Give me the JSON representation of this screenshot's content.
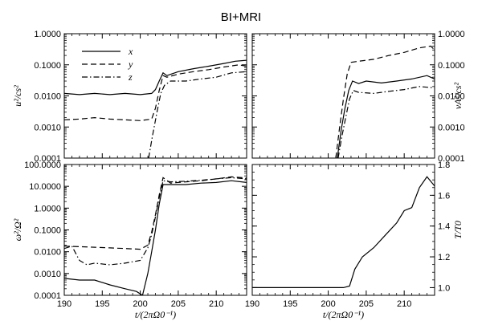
{
  "figure_title": "BI+MRI",
  "chart_data": [
    {
      "type": "line",
      "panel": "top-left",
      "ylabel": "u²/cs²",
      "yscale": "log",
      "ylim": [
        0.0001,
        1.0
      ],
      "xlim": [
        190,
        214
      ],
      "yticks": [
        "0.0001",
        "0.0010",
        "0.0100",
        "0.1000",
        "1.0000"
      ],
      "legend": {
        "placement": "top-left",
        "entries": [
          "x",
          "y",
          "z"
        ]
      },
      "series": [
        {
          "name": "x",
          "style": "solid",
          "points": [
            [
              190,
              0.012
            ],
            [
              192,
              0.011
            ],
            [
              194,
              0.012
            ],
            [
              196,
              0.011
            ],
            [
              198,
              0.012
            ],
            [
              200,
              0.011
            ],
            [
              201.5,
              0.012
            ],
            [
              202,
              0.016
            ],
            [
              202.5,
              0.03
            ],
            [
              203,
              0.055
            ],
            [
              203.5,
              0.045
            ],
            [
              205,
              0.06
            ],
            [
              207,
              0.075
            ],
            [
              209,
              0.09
            ],
            [
              211,
              0.11
            ],
            [
              212.5,
              0.13
            ],
            [
              214,
              0.14
            ]
          ]
        },
        {
          "name": "y",
          "style": "dashed",
          "points": [
            [
              190,
              0.0017
            ],
            [
              192,
              0.0018
            ],
            [
              194,
              0.002
            ],
            [
              196,
              0.0018
            ],
            [
              198,
              0.0017
            ],
            [
              200,
              0.0016
            ],
            [
              201.5,
              0.0018
            ],
            [
              202,
              0.004
            ],
            [
              202.5,
              0.015
            ],
            [
              203,
              0.045
            ],
            [
              203.5,
              0.04
            ],
            [
              205,
              0.05
            ],
            [
              207,
              0.06
            ],
            [
              209,
              0.07
            ],
            [
              211,
              0.085
            ],
            [
              213,
              0.1
            ],
            [
              214,
              0.09
            ]
          ]
        },
        {
          "name": "z",
          "style": "dashdot",
          "points": [
            [
              201.1,
              0.0001
            ],
            [
              201.6,
              0.0005
            ],
            [
              202.2,
              0.003
            ],
            [
              202.7,
              0.012
            ],
            [
              203.2,
              0.022
            ],
            [
              204,
              0.03
            ],
            [
              206,
              0.03
            ],
            [
              208,
              0.035
            ],
            [
              210,
              0.04
            ],
            [
              212,
              0.055
            ],
            [
              214,
              0.06
            ]
          ]
        }
      ]
    },
    {
      "type": "line",
      "panel": "top-right",
      "ylabel": "vA²/cs²",
      "yscale": "log",
      "ylim": [
        0.0001,
        1.0
      ],
      "xlim": [
        190,
        214
      ],
      "yticks": [
        "0.0001",
        "0.0010",
        "0.0100",
        "0.1000",
        "1.0000"
      ],
      "series": [
        {
          "name": "x",
          "style": "solid",
          "points": [
            [
              201.2,
              0.0001
            ],
            [
              201.7,
              0.0008
            ],
            [
              202.2,
              0.004
            ],
            [
              202.7,
              0.015
            ],
            [
              203.2,
              0.03
            ],
            [
              204,
              0.025
            ],
            [
              205,
              0.03
            ],
            [
              207,
              0.026
            ],
            [
              209,
              0.03
            ],
            [
              211,
              0.035
            ],
            [
              213,
              0.045
            ],
            [
              214,
              0.035
            ]
          ]
        },
        {
          "name": "y",
          "style": "dashed",
          "points": [
            [
              201.0,
              0.0001
            ],
            [
              201.5,
              0.001
            ],
            [
              202,
              0.008
            ],
            [
              202.5,
              0.05
            ],
            [
              203,
              0.12
            ],
            [
              204,
              0.13
            ],
            [
              206,
              0.15
            ],
            [
              208,
              0.2
            ],
            [
              210,
              0.25
            ],
            [
              212,
              0.35
            ],
            [
              213.5,
              0.4
            ],
            [
              214,
              0.3
            ]
          ]
        },
        {
          "name": "z",
          "style": "dashdot",
          "points": [
            [
              201.3,
              0.0001
            ],
            [
              201.8,
              0.0005
            ],
            [
              202.3,
              0.002
            ],
            [
              202.8,
              0.008
            ],
            [
              203.3,
              0.015
            ],
            [
              204,
              0.013
            ],
            [
              206,
              0.012
            ],
            [
              208,
              0.014
            ],
            [
              210,
              0.016
            ],
            [
              212,
              0.02
            ],
            [
              214,
              0.018
            ]
          ]
        }
      ]
    },
    {
      "type": "line",
      "panel": "bottom-left",
      "ylabel": "ω²/Ω²",
      "xlabel": "t/(2πΩ0⁻¹)",
      "yscale": "log",
      "ylim": [
        0.0001,
        100.0
      ],
      "xlim": [
        190,
        214
      ],
      "xticks": [
        "190",
        "195",
        "200",
        "205",
        "210"
      ],
      "yticks": [
        "0.0001",
        "0.0010",
        "0.0100",
        "0.1000",
        "1.0000",
        "10.0000",
        "100.0000"
      ],
      "series": [
        {
          "name": "x",
          "style": "solid",
          "points": [
            [
              190,
              0.0006
            ],
            [
              192,
              0.0005
            ],
            [
              194,
              0.0005
            ],
            [
              196,
              0.0003
            ],
            [
              198,
              0.0002
            ],
            [
              199.5,
              0.00015
            ],
            [
              200.3,
              0.0001
            ],
            [
              201,
              0.001
            ],
            [
              201.5,
              0.01
            ],
            [
              202,
              0.1
            ],
            [
              202.5,
              1.5
            ],
            [
              203,
              12
            ],
            [
              204,
              12
            ],
            [
              206,
              12
            ],
            [
              208,
              14
            ],
            [
              210,
              15
            ],
            [
              212,
              18
            ],
            [
              214,
              15
            ]
          ]
        },
        {
          "name": "y",
          "style": "dashed",
          "points": [
            [
              190,
              0.018
            ],
            [
              192,
              0.017
            ],
            [
              194,
              0.016
            ],
            [
              196,
              0.015
            ],
            [
              198,
              0.014
            ],
            [
              200,
              0.013
            ],
            [
              201,
              0.02
            ],
            [
              201.5,
              0.08
            ],
            [
              202,
              0.5
            ],
            [
              202.5,
              4
            ],
            [
              203,
              25
            ],
            [
              204,
              14
            ],
            [
              206,
              16
            ],
            [
              208,
              18
            ],
            [
              210,
              22
            ],
            [
              212,
              27
            ],
            [
              214,
              24
            ]
          ]
        },
        {
          "name": "z",
          "style": "dashdot",
          "points": [
            [
              190,
              0.014
            ],
            [
              191,
              0.018
            ],
            [
              192,
              0.004
            ],
            [
              193,
              0.0025
            ],
            [
              194,
              0.003
            ],
            [
              196,
              0.0025
            ],
            [
              198,
              0.003
            ],
            [
              200,
              0.004
            ],
            [
              201,
              0.015
            ],
            [
              201.5,
              0.06
            ],
            [
              202,
              0.4
            ],
            [
              202.5,
              3
            ],
            [
              203,
              18
            ],
            [
              204,
              16
            ],
            [
              206,
              17
            ],
            [
              208,
              19
            ],
            [
              210,
              22
            ],
            [
              212,
              25
            ],
            [
              214,
              22
            ]
          ]
        }
      ]
    },
    {
      "type": "line",
      "panel": "bottom-right",
      "ylabel": "T/T0",
      "xlabel": "t/(2πΩ0⁻¹)",
      "yscale": "linear",
      "ylim": [
        0.95,
        1.8
      ],
      "xlim": [
        190,
        214
      ],
      "xticks": [
        "190",
        "195",
        "200",
        "205",
        "210"
      ],
      "yticks": [
        "1.0",
        "1.2",
        "1.4",
        "1.6",
        "1.8"
      ],
      "series": [
        {
          "name": "T",
          "style": "solid",
          "points": [
            [
              190,
              1.0
            ],
            [
              198,
              1.0
            ],
            [
              202,
              1.0
            ],
            [
              202.8,
              1.01
            ],
            [
              203.5,
              1.12
            ],
            [
              204.5,
              1.2
            ],
            [
              206,
              1.26
            ],
            [
              207.5,
              1.34
            ],
            [
              209,
              1.42
            ],
            [
              210,
              1.5
            ],
            [
              211,
              1.52
            ],
            [
              212,
              1.65
            ],
            [
              213,
              1.72
            ],
            [
              214,
              1.66
            ]
          ]
        }
      ]
    }
  ]
}
